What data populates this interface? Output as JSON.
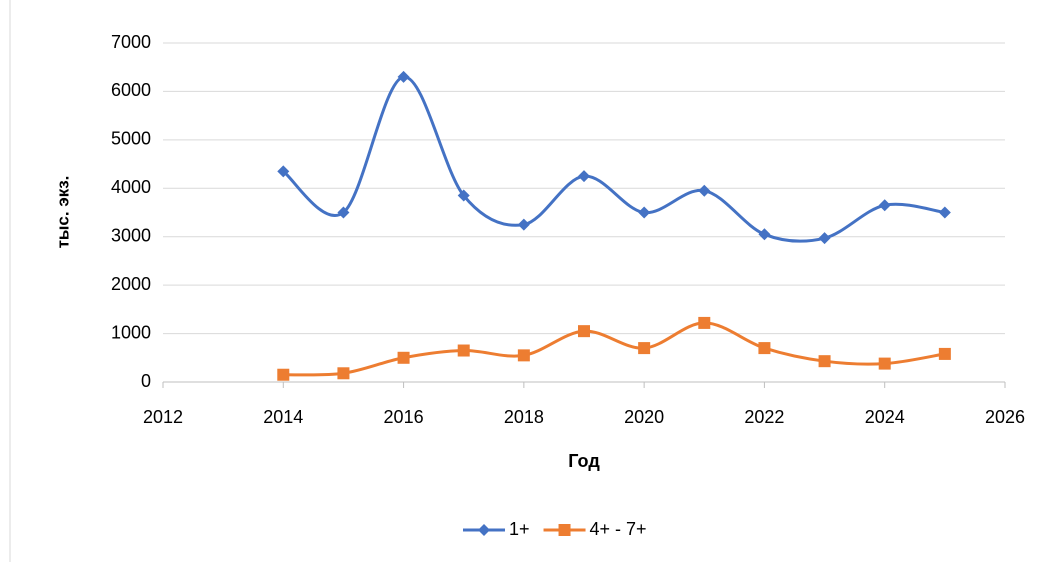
{
  "chart_data": {
    "type": "scatter",
    "smooth": true,
    "grid": true,
    "x_label": "Год",
    "y_label": "тыс. экз.",
    "xlim": [
      2012,
      2026
    ],
    "xticks": [
      2012,
      2014,
      2016,
      2018,
      2020,
      2022,
      2024,
      2026
    ],
    "ylim": [
      0,
      7000
    ],
    "yticks": [
      0,
      1000,
      2000,
      3000,
      4000,
      5000,
      6000,
      7000
    ],
    "x": [
      2014,
      2015,
      2016,
      2017,
      2018,
      2019,
      2020,
      2021,
      2022,
      2023,
      2024,
      2025
    ],
    "legend": "bottom",
    "series": [
      {
        "name": "1+",
        "color": "#4472c4",
        "marker": "diamond",
        "values": [
          4350,
          3500,
          6300,
          3850,
          3250,
          4250,
          3500,
          3950,
          3050,
          2970,
          3650,
          3500
        ]
      },
      {
        "name": "4+ - 7+",
        "color": "#ed7d31",
        "marker": "square",
        "values": [
          150,
          180,
          500,
          650,
          550,
          1050,
          700,
          1220,
          700,
          430,
          380,
          580
        ]
      }
    ]
  }
}
